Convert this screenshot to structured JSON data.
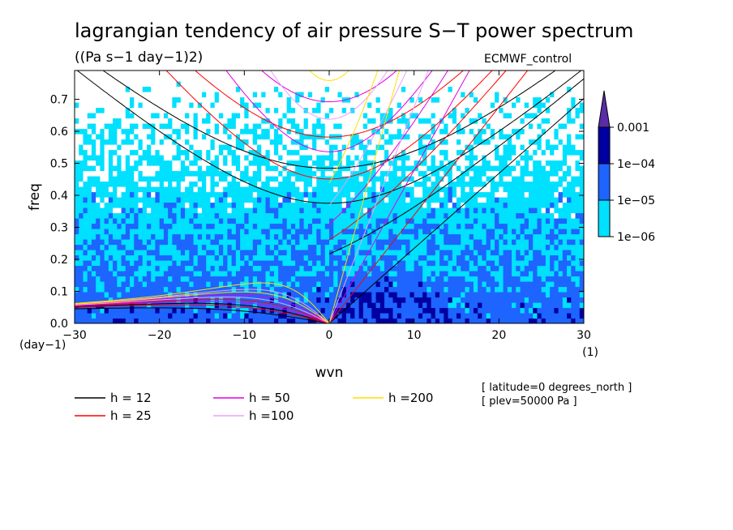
{
  "chart_data": {
    "type": "heatmap",
    "title": "lagrangian tendency of air pressure S−T power spectrum",
    "units": "((Pa s−1 day−1)2)",
    "experiment": "ECMWF_control",
    "xlabel": "wvn",
    "ylabel": "freq",
    "x_unit": "(1)",
    "y_unit": "(day−1)",
    "xlim": [
      -30,
      30
    ],
    "ylim": [
      0,
      0.79
    ],
    "x_ticks": [
      "−30",
      "−20",
      "−10",
      "0",
      "10",
      "20",
      "30"
    ],
    "y_ticks": [
      "0.0",
      "0.1",
      "0.2",
      "0.3",
      "0.4",
      "0.5",
      "0.6",
      "0.7"
    ],
    "colorbar": {
      "labels": [
        "0.001",
        "1e−04",
        "1e−05",
        "1e−06"
      ],
      "levels": [
        0.001,
        0.0001,
        1e-05,
        1e-06
      ],
      "colors": [
        "#5a2ca8",
        "#0000a0",
        "#1e64ff",
        "#00e0ff"
      ],
      "below_color": "#ffffff"
    },
    "dispersion_curves": [
      {
        "name": "h = 12",
        "h": 12,
        "color": "#000000"
      },
      {
        "name": "h = 25",
        "h": 25,
        "color": "#ff0000"
      },
      {
        "name": "h = 50",
        "h": 50,
        "color": "#e000e0"
      },
      {
        "name": "h =100",
        "h": 100,
        "color": "#e8a0ff"
      },
      {
        "name": "h =200",
        "h": 200,
        "color": "#ffe000"
      }
    ],
    "annotations": [
      "[ latitude=0 degrees_north ]",
      "[ plev=50000 Pa ]"
    ]
  }
}
